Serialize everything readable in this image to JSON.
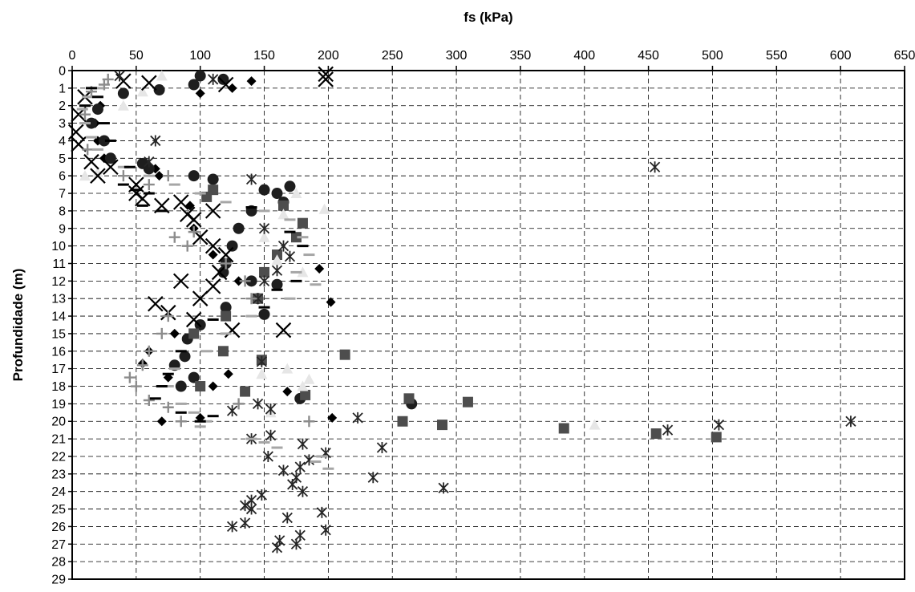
{
  "chart_data": {
    "type": "scatter",
    "title": "",
    "xlabel": "fs (kPa)",
    "ylabel": "Profundidade (m)",
    "x_axis_position": "top",
    "y_axis_inverted": true,
    "xlim": [
      0,
      650
    ],
    "ylim": [
      0,
      29
    ],
    "x_ticks": [
      0,
      50,
      100,
      150,
      200,
      250,
      300,
      350,
      400,
      450,
      500,
      550,
      600,
      650
    ],
    "y_ticks": [
      0,
      1,
      2,
      3,
      4,
      5,
      6,
      7,
      8,
      9,
      10,
      11,
      12,
      13,
      14,
      15,
      16,
      17,
      18,
      19,
      20,
      21,
      22,
      23,
      24,
      25,
      26,
      27,
      28,
      29
    ],
    "grid": true,
    "legend": "none",
    "series": [
      {
        "marker": "diamond",
        "color": "#000000",
        "points": [
          [
            140,
            0.6
          ],
          [
            125,
            1.0
          ],
          [
            100,
            1.3
          ],
          [
            22,
            2.0
          ],
          [
            18,
            3.0
          ],
          [
            20,
            4.0
          ],
          [
            25,
            5.0
          ],
          [
            65,
            5.6
          ],
          [
            68,
            6.0
          ],
          [
            92,
            7.7
          ],
          [
            95,
            9.0
          ],
          [
            110,
            10.5
          ],
          [
            193,
            11.3
          ],
          [
            130,
            12.0
          ],
          [
            202,
            13.2
          ],
          [
            120,
            14.0
          ],
          [
            80,
            15.0
          ],
          [
            60,
            16.0
          ],
          [
            55,
            16.7
          ],
          [
            75,
            17.5
          ],
          [
            122,
            17.3
          ],
          [
            110,
            18.0
          ],
          [
            168,
            18.3
          ],
          [
            100,
            19.8
          ],
          [
            70,
            20.0
          ],
          [
            203,
            19.8
          ]
        ]
      },
      {
        "marker": "circle",
        "color": "#1e1e1e",
        "points": [
          [
            100,
            0.3
          ],
          [
            118,
            0.5
          ],
          [
            95,
            0.8
          ],
          [
            68,
            1.1
          ],
          [
            40,
            1.3
          ],
          [
            20,
            2.2
          ],
          [
            15,
            3.0
          ],
          [
            25,
            4.0
          ],
          [
            30,
            5.0
          ],
          [
            55,
            5.3
          ],
          [
            60,
            5.6
          ],
          [
            95,
            6.0
          ],
          [
            110,
            6.2
          ],
          [
            150,
            6.8
          ],
          [
            170,
            6.6
          ],
          [
            160,
            7.0
          ],
          [
            165,
            7.5
          ],
          [
            140,
            8.0
          ],
          [
            130,
            9.0
          ],
          [
            125,
            10.0
          ],
          [
            120,
            11.0
          ],
          [
            118,
            11.5
          ],
          [
            140,
            12.0
          ],
          [
            160,
            12.2
          ],
          [
            145,
            13.0
          ],
          [
            120,
            13.5
          ],
          [
            150,
            13.9
          ],
          [
            100,
            14.5
          ],
          [
            90,
            15.3
          ],
          [
            88,
            16.3
          ],
          [
            80,
            16.8
          ],
          [
            95,
            17.5
          ],
          [
            85,
            18.0
          ],
          [
            178,
            18.7
          ],
          [
            265,
            19.0
          ]
        ]
      },
      {
        "marker": "square",
        "color": "#4d4d4d",
        "points": [
          [
            110,
            6.8
          ],
          [
            105,
            7.2
          ],
          [
            165,
            7.7
          ],
          [
            180,
            8.7
          ],
          [
            175,
            9.5
          ],
          [
            160,
            10.5
          ],
          [
            150,
            11.5
          ],
          [
            145,
            13.0
          ],
          [
            120,
            14.0
          ],
          [
            95,
            15.0
          ],
          [
            118,
            16.0
          ],
          [
            148,
            16.5
          ],
          [
            213,
            16.2
          ],
          [
            135,
            18.3
          ],
          [
            182,
            18.5
          ],
          [
            263,
            18.7
          ],
          [
            100,
            18.0
          ],
          [
            309,
            18.9
          ],
          [
            258,
            20.0
          ],
          [
            289,
            20.2
          ],
          [
            384,
            20.4
          ],
          [
            456,
            20.7
          ],
          [
            503,
            20.9
          ]
        ]
      },
      {
        "marker": "triangle",
        "color": "#e6e6e6",
        "points": [
          [
            70,
            0.3
          ],
          [
            55,
            1.2
          ],
          [
            40,
            2.0
          ],
          [
            20,
            5.8
          ],
          [
            10,
            6.0
          ],
          [
            175,
            7.0
          ],
          [
            197,
            7.9
          ],
          [
            165,
            8.2
          ],
          [
            150,
            9.5
          ],
          [
            160,
            10.8
          ],
          [
            180,
            11.5
          ],
          [
            148,
            17.3
          ],
          [
            168,
            17.0
          ],
          [
            185,
            17.6
          ],
          [
            180,
            18.0
          ],
          [
            155,
            19.5
          ],
          [
            408,
            20.2
          ]
        ]
      },
      {
        "marker": "x",
        "color": "#000000",
        "points": [
          [
            198,
            0.2
          ],
          [
            198,
            0.5
          ],
          [
            120,
            0.8
          ],
          [
            60,
            0.7
          ],
          [
            40,
            0.6
          ],
          [
            10,
            1.5
          ],
          [
            5,
            2.5
          ],
          [
            3,
            3.5
          ],
          [
            5,
            4.2
          ],
          [
            15,
            5.2
          ],
          [
            30,
            5.5
          ],
          [
            20,
            6.0
          ],
          [
            50,
            6.5
          ],
          [
            50,
            7.0
          ],
          [
            55,
            7.3
          ],
          [
            70,
            7.7
          ],
          [
            85,
            7.5
          ],
          [
            90,
            8.2
          ],
          [
            95,
            8.5
          ],
          [
            110,
            8.0
          ],
          [
            100,
            9.5
          ],
          [
            110,
            10.0
          ],
          [
            120,
            10.5
          ],
          [
            115,
            11.5
          ],
          [
            85,
            12.0
          ],
          [
            110,
            12.3
          ],
          [
            100,
            13.0
          ],
          [
            65,
            13.3
          ],
          [
            75,
            13.8
          ],
          [
            95,
            14.2
          ],
          [
            125,
            14.8
          ],
          [
            165,
            14.8
          ]
        ]
      },
      {
        "marker": "asterisk",
        "color": "#262626",
        "points": [
          [
            37,
            0.3
          ],
          [
            110,
            0.5
          ],
          [
            65,
            4.0
          ],
          [
            455,
            5.5
          ],
          [
            60,
            5.2
          ],
          [
            140,
            6.2
          ],
          [
            150,
            9.0
          ],
          [
            165,
            10.0
          ],
          [
            170,
            10.6
          ],
          [
            160,
            11.4
          ],
          [
            150,
            12.0
          ],
          [
            145,
            13.0
          ],
          [
            148,
            16.6
          ],
          [
            125,
            19.4
          ],
          [
            145,
            19.0
          ],
          [
            155,
            19.3
          ],
          [
            223,
            19.8
          ],
          [
            608,
            20.0
          ],
          [
            505,
            20.2
          ],
          [
            465,
            20.5
          ],
          [
            140,
            21.0
          ],
          [
            155,
            20.8
          ],
          [
            180,
            21.3
          ],
          [
            198,
            21.8
          ],
          [
            242,
            21.5
          ],
          [
            153,
            22.0
          ],
          [
            185,
            22.2
          ],
          [
            178,
            22.6
          ],
          [
            165,
            22.8
          ],
          [
            175,
            23.2
          ],
          [
            235,
            23.2
          ],
          [
            172,
            23.6
          ],
          [
            290,
            23.8
          ],
          [
            180,
            24.0
          ],
          [
            148,
            24.2
          ],
          [
            140,
            24.5
          ],
          [
            135,
            24.8
          ],
          [
            140,
            25.0
          ],
          [
            195,
            25.2
          ],
          [
            168,
            25.5
          ],
          [
            135,
            25.8
          ],
          [
            125,
            26.0
          ],
          [
            198,
            26.2
          ],
          [
            178,
            26.5
          ],
          [
            162,
            26.8
          ],
          [
            175,
            27.0
          ],
          [
            160,
            27.2
          ]
        ]
      },
      {
        "marker": "plus",
        "color": "#8c8c8c",
        "points": [
          [
            28,
            0.5
          ],
          [
            25,
            0.8
          ],
          [
            15,
            1.2
          ],
          [
            10,
            2.5
          ],
          [
            12,
            4.5
          ],
          [
            40,
            6.0
          ],
          [
            60,
            6.5
          ],
          [
            75,
            6.0
          ],
          [
            80,
            9.5
          ],
          [
            95,
            9.2
          ],
          [
            90,
            10.0
          ],
          [
            120,
            11.0
          ],
          [
            135,
            12.0
          ],
          [
            140,
            13.0
          ],
          [
            75,
            14.0
          ],
          [
            70,
            15.0
          ],
          [
            60,
            16.0
          ],
          [
            55,
            16.8
          ],
          [
            45,
            17.5
          ],
          [
            50,
            18.0
          ],
          [
            60,
            18.8
          ],
          [
            75,
            19.2
          ],
          [
            85,
            20.0
          ],
          [
            185,
            20.0
          ],
          [
            130,
            19.0
          ]
        ]
      },
      {
        "marker": "dash",
        "color": "#a6a6a6",
        "points": [
          [
            20,
            1.0
          ],
          [
            12,
            1.5
          ],
          [
            8,
            2.2
          ],
          [
            10,
            3.0
          ],
          [
            15,
            3.8
          ],
          [
            20,
            4.5
          ],
          [
            40,
            5.5
          ],
          [
            60,
            6.0
          ],
          [
            80,
            6.5
          ],
          [
            100,
            7.0
          ],
          [
            120,
            7.5
          ],
          [
            150,
            8.0
          ],
          [
            170,
            8.5
          ],
          [
            180,
            9.5
          ],
          [
            185,
            10.5
          ],
          [
            175,
            11.5
          ],
          [
            190,
            12.2
          ],
          [
            170,
            13.0
          ],
          [
            140,
            14.0
          ],
          [
            120,
            15.0
          ],
          [
            105,
            16.0
          ],
          [
            80,
            17.0
          ],
          [
            75,
            18.0
          ],
          [
            85,
            19.0
          ],
          [
            95,
            19.5
          ],
          [
            100,
            20.3
          ],
          [
            105,
            20.0
          ],
          [
            140,
            21.0
          ],
          [
            160,
            21.5
          ],
          [
            195,
            22.0
          ],
          [
            200,
            22.7
          ],
          [
            150,
            21.2
          ],
          [
            190,
            22.3
          ]
        ]
      },
      {
        "marker": "dash",
        "color": "#000000",
        "points": [
          [
            15,
            1.0
          ],
          [
            20,
            1.5
          ],
          [
            10,
            2.0
          ],
          [
            25,
            3.0
          ],
          [
            30,
            4.0
          ],
          [
            45,
            5.5
          ],
          [
            40,
            6.5
          ],
          [
            50,
            6.8
          ],
          [
            60,
            7.0
          ],
          [
            55,
            7.7
          ],
          [
            70,
            8.0
          ],
          [
            140,
            7.8
          ],
          [
            170,
            9.2
          ],
          [
            180,
            10.0
          ],
          [
            175,
            12.0
          ],
          [
            160,
            12.5
          ],
          [
            150,
            13.5
          ],
          [
            110,
            14.2
          ],
          [
            85,
            16.0
          ],
          [
            75,
            17.3
          ],
          [
            70,
            18.0
          ],
          [
            65,
            18.7
          ],
          [
            85,
            19.5
          ],
          [
            100,
            20.0
          ],
          [
            110,
            19.7
          ]
        ]
      }
    ]
  }
}
